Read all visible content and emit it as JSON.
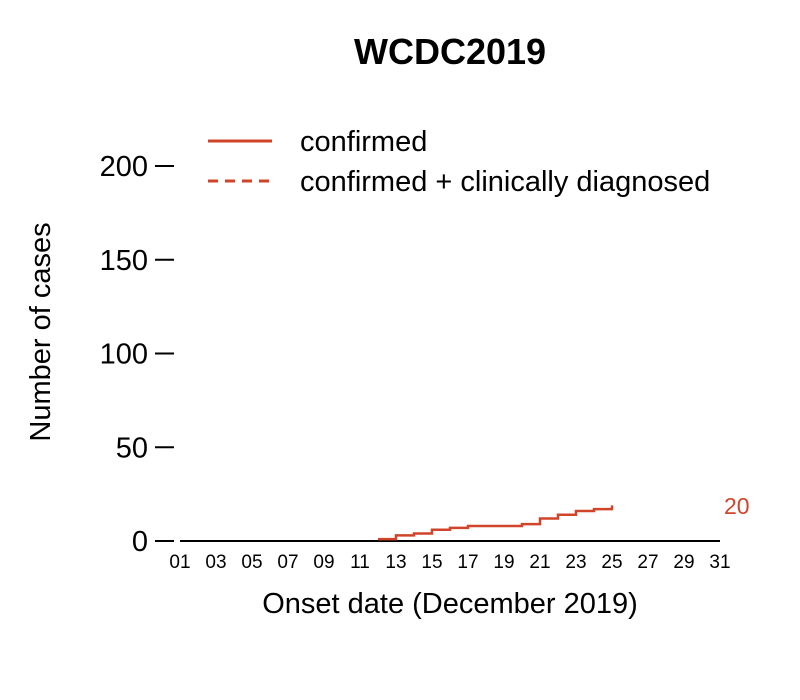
{
  "chart_data": {
    "type": "line",
    "title": "WCDC2019",
    "xlabel": "Onset date (December 2019)",
    "ylabel": "Number of cases",
    "xlim": [
      1,
      31
    ],
    "ylim": [
      0,
      200
    ],
    "x_ticks": [
      "01",
      "03",
      "05",
      "07",
      "09",
      "11",
      "13",
      "15",
      "17",
      "19",
      "21",
      "23",
      "25",
      "27",
      "29",
      "31"
    ],
    "y_ticks": [
      0,
      50,
      100,
      150,
      200
    ],
    "grid": false,
    "legend_position": "top",
    "colors": {
      "series": "#d0452a",
      "axis": "#000000"
    },
    "series": [
      {
        "name": "confirmed",
        "line_style": "solid",
        "step": true,
        "x": [
          12,
          13,
          14,
          15,
          16,
          17,
          18,
          19,
          20,
          21,
          22,
          23,
          24,
          25
        ],
        "y": [
          1,
          3,
          4,
          6,
          7,
          8,
          8,
          8,
          9,
          12,
          14,
          16,
          17,
          19
        ]
      },
      {
        "name": "confirmed + clinically diagnosed",
        "line_style": "dashed",
        "step": true,
        "x": [],
        "y": []
      }
    ],
    "annotations": [
      {
        "text": "20",
        "series": "confirmed"
      }
    ]
  }
}
